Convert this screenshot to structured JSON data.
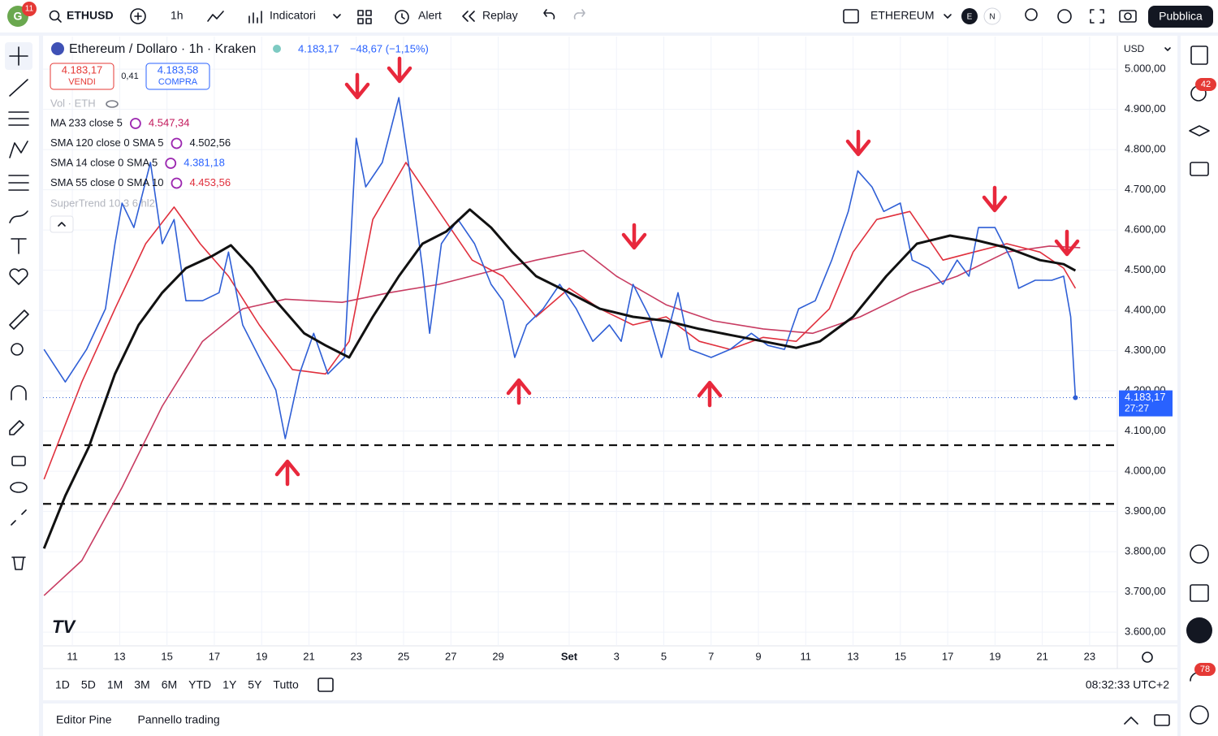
{
  "toolbar": {
    "avatar": "G",
    "avatar_badge": "11",
    "symbol": "ETHUSD",
    "interval": "1h",
    "indicators": "Indicatori",
    "alert": "Alert",
    "replay": "Replay",
    "watchlist": "ETHEREUM",
    "badge_e": "E",
    "badge_n": "N",
    "publish": "Pubblica"
  },
  "legend": {
    "title": "Ethereum / Dollaro · 1h · Kraken",
    "last": "4.183,17",
    "change": "−48,67 (−1,15%)",
    "sell_price": "4.183,17",
    "sell": "VENDI",
    "spread": "0,41",
    "buy_price": "4.183,58",
    "buy": "COMPRA",
    "volume": "Vol · ETH",
    "indicators": [
      {
        "name": "MA 233 close 5",
        "value": "4.547,34",
        "color": "#c2185b"
      },
      {
        "name": "SMA 120 close 0 SMA 5",
        "value": "4.502,56",
        "color": "#131722"
      },
      {
        "name": "SMA 14 close 0 SMA 5",
        "value": "4.381,18",
        "color": "#2962ff"
      },
      {
        "name": "SMA 55 close 0 SMA 10",
        "value": "4.453,56",
        "color": "#e0303d"
      }
    ],
    "supertrend": "SuperTrend 10 3 6 hl2"
  },
  "chart_data": {
    "type": "line",
    "currency": "USD",
    "xlim": [
      9.76,
      55.17
    ],
    "xticks": [
      11,
      13,
      15,
      17,
      19,
      21,
      23,
      25,
      27,
      29,
      {
        "value": 32,
        "label": "Set"
      },
      {
        "value": 34,
        "label": "3"
      },
      {
        "value": 36,
        "label": "5"
      },
      {
        "value": 38,
        "label": "7"
      },
      {
        "value": 40,
        "label": "9"
      },
      {
        "value": 42,
        "label": "11"
      },
      {
        "value": 44,
        "label": "13"
      },
      {
        "value": 46,
        "label": "15"
      },
      {
        "value": 48,
        "label": "17"
      },
      {
        "value": 50,
        "label": "19"
      },
      {
        "value": 52,
        "label": "21"
      },
      {
        "value": 54,
        "label": "23"
      }
    ],
    "ylim": [
      3566,
      5081
    ],
    "yticks": [
      {
        "value": 3600,
        "label": "3.600,00"
      },
      {
        "value": 3700,
        "label": "3.700,00"
      },
      {
        "value": 3800,
        "label": "3.800,00"
      },
      {
        "value": 3900,
        "label": "3.900,00"
      },
      {
        "value": 4000,
        "label": "4.000,00"
      },
      {
        "value": 4100,
        "label": "4.100,00"
      },
      {
        "value": 4200,
        "label": "4.200,00"
      },
      {
        "value": 4300,
        "label": "4.300,00"
      },
      {
        "value": 4400,
        "label": "4.400,00"
      },
      {
        "value": 4500,
        "label": "4.500,00"
      },
      {
        "value": 4600,
        "label": "4.600,00"
      },
      {
        "value": 4700,
        "label": "4.700,00"
      },
      {
        "value": 4800,
        "label": "4.800,00"
      },
      {
        "value": 4900,
        "label": "4.900,00"
      },
      {
        "value": 5000,
        "label": "5.000,00"
      }
    ],
    "grid": true,
    "last_label": "4.183,17",
    "countdown": "27:27",
    "hlines": [
      4065,
      3919
    ],
    "series": [
      {
        "color": "#c83c62",
        "width": 1.6,
        "x": [
          9.8,
          11.4,
          13.1,
          14.8,
          16.5,
          18.2,
          20.0,
          22.4,
          24.4,
          26.5,
          28.5,
          30.6,
          32.6,
          34.0,
          36.1,
          38.1,
          40.2,
          42.3,
          44.3,
          46.4,
          48.4,
          50.5,
          52.3,
          53.6
        ],
        "values": [
          3691,
          3778,
          3960,
          4162,
          4323,
          4404,
          4428,
          4420,
          4444,
          4465,
          4495,
          4525,
          4549,
          4485,
          4414,
          4374,
          4354,
          4343,
          4384,
          4444,
          4485,
          4545,
          4560,
          4556
        ]
      },
      {
        "color": "#e0303d",
        "width": 1.6,
        "x": [
          9.8,
          11.4,
          12.8,
          14.1,
          15.3,
          16.4,
          17.6,
          18.9,
          20.3,
          21.7,
          22.7,
          23.7,
          25.1,
          26.5,
          27.9,
          29.2,
          30.6,
          32.0,
          33.3,
          34.7,
          36.1,
          37.5,
          38.8,
          40.2,
          41.6,
          43.0,
          44.0,
          45.0,
          46.4,
          47.8,
          49.1,
          50.5,
          51.9,
          52.9,
          53.4
        ],
        "values": [
          3980,
          4222,
          4404,
          4566,
          4657,
          4566,
          4485,
          4364,
          4253,
          4242,
          4323,
          4626,
          4768,
          4646,
          4525,
          4485,
          4384,
          4455,
          4404,
          4364,
          4384,
          4323,
          4303,
          4333,
          4323,
          4404,
          4545,
          4626,
          4646,
          4525,
          4545,
          4566,
          4545,
          4505,
          4455
        ]
      },
      {
        "color": "#2f5fd6",
        "width": 1.6,
        "x": [
          9.8,
          10.7,
          11.6,
          12.4,
          12.8,
          13.1,
          13.6,
          14.3,
          14.8,
          15.3,
          15.8,
          16.5,
          17.2,
          17.6,
          18.2,
          18.9,
          19.6,
          20.0,
          20.6,
          21.2,
          21.8,
          22.5,
          23.0,
          23.4,
          24.1,
          24.8,
          25.3,
          25.8,
          26.1,
          26.6,
          27.3,
          28.0,
          28.7,
          29.2,
          29.7,
          30.2,
          30.9,
          31.6,
          32.3,
          33.0,
          33.7,
          34.2,
          34.7,
          35.4,
          35.9,
          36.6,
          37.1,
          38.0,
          38.8,
          39.7,
          40.4,
          41.1,
          41.7,
          42.4,
          43.1,
          43.8,
          44.2,
          44.8,
          45.3,
          46.0,
          46.5,
          47.2,
          47.8,
          48.4,
          48.9,
          49.3,
          50.0,
          50.7,
          51.0,
          51.7,
          52.4,
          52.9,
          53.2,
          53.3,
          53.4
        ],
        "values": [
          4303,
          4222,
          4303,
          4404,
          4566,
          4667,
          4606,
          4768,
          4566,
          4626,
          4424,
          4424,
          4444,
          4545,
          4364,
          4283,
          4202,
          4081,
          4242,
          4343,
          4242,
          4283,
          4828,
          4707,
          4768,
          4929,
          4727,
          4505,
          4343,
          4566,
          4626,
          4566,
          4465,
          4424,
          4283,
          4364,
          4404,
          4465,
          4404,
          4323,
          4364,
          4323,
          4465,
          4384,
          4283,
          4444,
          4303,
          4283,
          4303,
          4343,
          4313,
          4303,
          4404,
          4424,
          4525,
          4646,
          4747,
          4707,
          4646,
          4667,
          4525,
          4505,
          4465,
          4525,
          4485,
          4606,
          4606,
          4525,
          4455,
          4475,
          4475,
          4485,
          4384,
          4283,
          4183
        ]
      },
      {
        "color": "#111111",
        "width": 3,
        "x": [
          9.8,
          10.7,
          11.7,
          12.8,
          13.8,
          14.8,
          15.8,
          16.9,
          17.7,
          18.6,
          19.6,
          20.8,
          21.7,
          22.7,
          23.7,
          24.8,
          25.8,
          26.8,
          27.8,
          28.7,
          29.6,
          30.6,
          32.0,
          33.3,
          34.7,
          36.1,
          37.5,
          38.8,
          40.2,
          41.6,
          42.6,
          44.0,
          45.4,
          46.7,
          48.1,
          49.1,
          50.5,
          51.9,
          52.9,
          53.4
        ],
        "values": [
          3808,
          3939,
          4061,
          4242,
          4364,
          4444,
          4505,
          4535,
          4562,
          4505,
          4424,
          4343,
          4313,
          4283,
          4384,
          4485,
          4566,
          4596,
          4651,
          4606,
          4545,
          4485,
          4444,
          4404,
          4384,
          4374,
          4354,
          4339,
          4323,
          4307,
          4323,
          4384,
          4485,
          4566,
          4586,
          4576,
          4556,
          4525,
          4515,
          4499
        ]
      }
    ]
  },
  "range_buttons": [
    "1D",
    "5D",
    "1M",
    "3M",
    "6M",
    "YTD",
    "1Y",
    "5Y",
    "Tutto"
  ],
  "clock": "08:32:33 UTC+2",
  "bottom_tabs": [
    "Editor Pine",
    "Pannello trading"
  ],
  "sidebar": {
    "alerts_badge": "42",
    "notifications_badge": "78"
  }
}
